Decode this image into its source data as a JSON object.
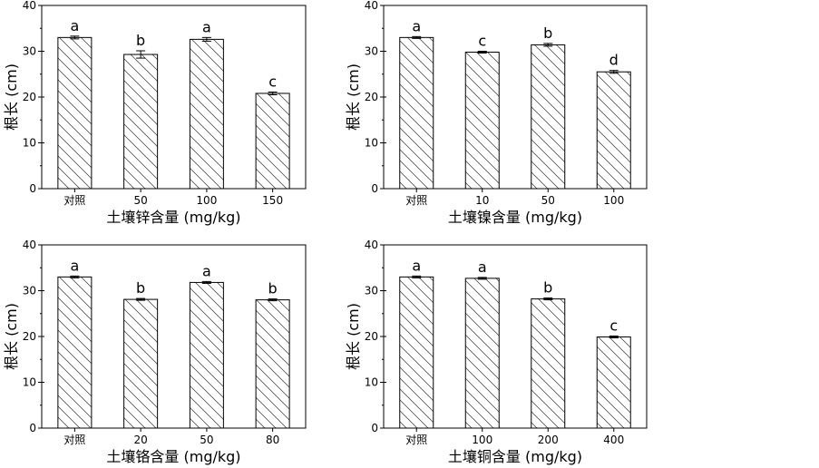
{
  "chart_data": [
    {
      "type": "bar",
      "categories": [
        "对照",
        "50",
        "100",
        "150"
      ],
      "values": [
        33.0,
        29.3,
        32.6,
        20.8
      ],
      "errors": [
        0.3,
        0.8,
        0.4,
        0.3
      ],
      "significance": [
        "a",
        "b",
        "a",
        "c"
      ],
      "xlabel": "土壤锌含量 (mg/kg)",
      "ylabel": "根长 (cm)",
      "ylim": [
        0,
        40
      ],
      "yticks": [
        0,
        10,
        20,
        30,
        40
      ],
      "grid": false,
      "bar_fill": "diagonal-hatch"
    },
    {
      "type": "bar",
      "categories": [
        "对照",
        "10",
        "50",
        "100"
      ],
      "values": [
        33.0,
        29.8,
        31.4,
        25.5
      ],
      "errors": [
        0.2,
        0.2,
        0.3,
        0.3
      ],
      "significance": [
        "a",
        "c",
        "b",
        "d"
      ],
      "xlabel": "土壤镍含量 (mg/kg)",
      "ylabel": "根长 (cm)",
      "ylim": [
        0,
        40
      ],
      "yticks": [
        0,
        10,
        20,
        30,
        40
      ],
      "grid": false,
      "bar_fill": "diagonal-hatch"
    },
    {
      "type": "bar",
      "categories": [
        "对照",
        "20",
        "50",
        "80"
      ],
      "values": [
        33.0,
        28.1,
        31.8,
        28.0
      ],
      "errors": [
        0.2,
        0.2,
        0.2,
        0.2
      ],
      "significance": [
        "a",
        "b",
        "a",
        "b"
      ],
      "xlabel": "土壤铬含量 (mg/kg)",
      "ylabel": "根长 (cm)",
      "ylim": [
        0,
        40
      ],
      "yticks": [
        0,
        10,
        20,
        30,
        40
      ],
      "grid": false,
      "bar_fill": "diagonal-hatch"
    },
    {
      "type": "bar",
      "categories": [
        "对照",
        "100",
        "200",
        "400"
      ],
      "values": [
        33.0,
        32.7,
        28.2,
        19.9
      ],
      "errors": [
        0.2,
        0.2,
        0.2,
        0.2
      ],
      "significance": [
        "a",
        "a",
        "b",
        "c"
      ],
      "xlabel": "土壤铜含量 (mg/kg)",
      "ylabel": "根长 (cm)",
      "ylim": [
        0,
        40
      ],
      "yticks": [
        0,
        10,
        20,
        30,
        40
      ],
      "grid": false,
      "bar_fill": "diagonal-hatch"
    }
  ]
}
